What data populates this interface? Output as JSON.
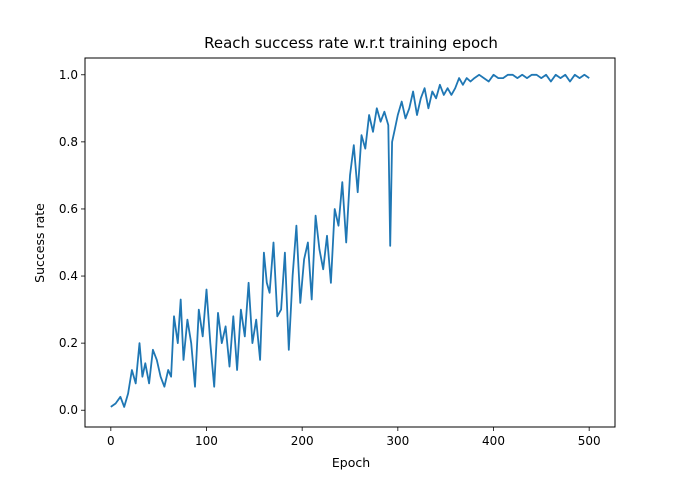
{
  "chart_data": {
    "type": "line",
    "title": "Reach success rate w.r.t training epoch",
    "xlabel": "Epoch",
    "ylabel": "Success rate",
    "xlim": [
      -27,
      527
    ],
    "ylim": [
      -0.05,
      1.05
    ],
    "xticks": [
      0,
      100,
      200,
      300,
      400,
      500
    ],
    "yticks": [
      0.0,
      0.2,
      0.4,
      0.6,
      0.8,
      1.0
    ],
    "ytick_labels": [
      "0.0",
      "0.2",
      "0.4",
      "0.6",
      "0.8",
      "1.0"
    ],
    "grid": false,
    "line_color": "#1f77b4",
    "series": [
      {
        "x": [
          0,
          5,
          10,
          14,
          18,
          22,
          26,
          30,
          33,
          36,
          40,
          44,
          48,
          52,
          56,
          60,
          63,
          66,
          70,
          73,
          76,
          80,
          84,
          88,
          92,
          96,
          100,
          104,
          108,
          112,
          116,
          120,
          124,
          128,
          132,
          136,
          140,
          144,
          148,
          152,
          156,
          160,
          163,
          166,
          170,
          174,
          178,
          182,
          186,
          190,
          194,
          198,
          202,
          206,
          210,
          214,
          218,
          222,
          226,
          230,
          234,
          238,
          242,
          246,
          250,
          254,
          258,
          262,
          266,
          270,
          274,
          278,
          282,
          286,
          290,
          292,
          294,
          297,
          300,
          304,
          308,
          312,
          316,
          320,
          324,
          328,
          332,
          336,
          340,
          344,
          348,
          352,
          356,
          360,
          364,
          368,
          372,
          376,
          380,
          385,
          390,
          395,
          400,
          405,
          410,
          415,
          420,
          425,
          430,
          435,
          440,
          445,
          450,
          455,
          460,
          465,
          470,
          475,
          480,
          485,
          490,
          495,
          500
        ],
        "y": [
          0.01,
          0.02,
          0.04,
          0.01,
          0.05,
          0.12,
          0.08,
          0.2,
          0.1,
          0.14,
          0.08,
          0.18,
          0.15,
          0.1,
          0.07,
          0.12,
          0.1,
          0.28,
          0.2,
          0.33,
          0.15,
          0.27,
          0.2,
          0.07,
          0.3,
          0.22,
          0.36,
          0.2,
          0.07,
          0.29,
          0.2,
          0.25,
          0.13,
          0.28,
          0.12,
          0.3,
          0.22,
          0.38,
          0.2,
          0.27,
          0.15,
          0.47,
          0.38,
          0.35,
          0.5,
          0.28,
          0.3,
          0.47,
          0.18,
          0.4,
          0.55,
          0.32,
          0.45,
          0.5,
          0.33,
          0.58,
          0.48,
          0.42,
          0.52,
          0.38,
          0.6,
          0.55,
          0.68,
          0.5,
          0.7,
          0.79,
          0.65,
          0.82,
          0.78,
          0.88,
          0.83,
          0.9,
          0.86,
          0.89,
          0.85,
          0.49,
          0.8,
          0.84,
          0.88,
          0.92,
          0.87,
          0.9,
          0.95,
          0.88,
          0.93,
          0.96,
          0.9,
          0.95,
          0.93,
          0.97,
          0.94,
          0.96,
          0.94,
          0.96,
          0.99,
          0.97,
          0.99,
          0.98,
          0.99,
          1.0,
          0.99,
          0.98,
          1.0,
          0.99,
          0.99,
          1.0,
          1.0,
          0.99,
          1.0,
          0.99,
          1.0,
          1.0,
          0.99,
          1.0,
          0.98,
          1.0,
          0.99,
          1.0,
          0.98,
          1.0,
          0.99,
          1.0,
          0.99
        ]
      }
    ]
  }
}
